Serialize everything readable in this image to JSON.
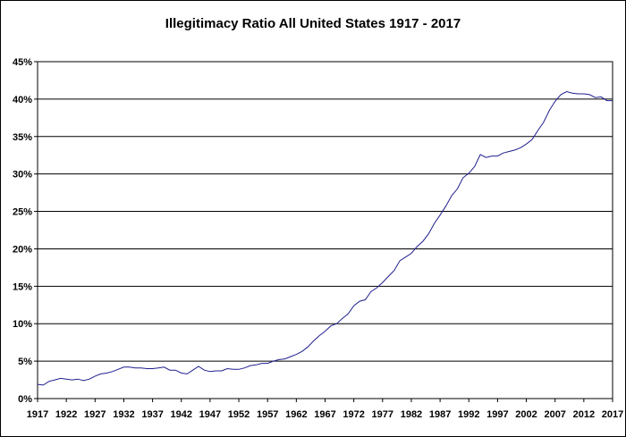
{
  "chart_data": {
    "type": "line",
    "title": "Illegitimacy Ratio All United States 1917 - 2017",
    "xlabel": "",
    "ylabel": "",
    "xlim": [
      1917,
      2017
    ],
    "ylim": [
      0,
      45
    ],
    "y_ticks": [
      "0%",
      "5%",
      "10%",
      "15%",
      "20%",
      "25%",
      "30%",
      "35%",
      "40%",
      "45%"
    ],
    "x_ticks": [
      "1917",
      "1922",
      "1927",
      "1932",
      "1937",
      "1942",
      "1947",
      "1952",
      "1957",
      "1962",
      "1967",
      "1972",
      "1977",
      "1982",
      "1987",
      "1992",
      "1997",
      "2002",
      "2007",
      "2012",
      "2017"
    ],
    "grid": "horizontal",
    "legend": "none",
    "series": [
      {
        "color": "#1f1f8f",
        "x": [
          1917,
          1918,
          1919,
          1920,
          1921,
          1922,
          1923,
          1924,
          1925,
          1926,
          1927,
          1928,
          1929,
          1930,
          1931,
          1932,
          1933,
          1934,
          1935,
          1936,
          1937,
          1938,
          1939,
          1940,
          1941,
          1942,
          1943,
          1944,
          1945,
          1946,
          1947,
          1948,
          1949,
          1950,
          1951,
          1952,
          1953,
          1954,
          1955,
          1956,
          1957,
          1958,
          1959,
          1960,
          1961,
          1962,
          1963,
          1964,
          1965,
          1966,
          1967,
          1968,
          1969,
          1970,
          1971,
          1972,
          1973,
          1974,
          1975,
          1976,
          1977,
          1978,
          1979,
          1980,
          1981,
          1982,
          1983,
          1984,
          1985,
          1986,
          1987,
          1988,
          1989,
          1990,
          1991,
          1992,
          1993,
          1994,
          1995,
          1996,
          1997,
          1998,
          1999,
          2000,
          2001,
          2002,
          2003,
          2004,
          2005,
          2006,
          2007,
          2008,
          2009,
          2010,
          2011,
          2012,
          2013,
          2014,
          2015,
          2016,
          2017
        ],
        "values": [
          1.9,
          1.8,
          2.3,
          2.5,
          2.7,
          2.6,
          2.5,
          2.6,
          2.4,
          2.6,
          3.0,
          3.3,
          3.4,
          3.6,
          3.9,
          4.2,
          4.2,
          4.1,
          4.1,
          4.0,
          4.0,
          4.1,
          4.2,
          3.8,
          3.8,
          3.4,
          3.3,
          3.8,
          4.3,
          3.8,
          3.6,
          3.7,
          3.7,
          4.0,
          3.9,
          3.9,
          4.1,
          4.4,
          4.5,
          4.7,
          4.7,
          5.0,
          5.2,
          5.3,
          5.6,
          5.9,
          6.3,
          6.9,
          7.7,
          8.4,
          9.0,
          9.7,
          10.0,
          10.7,
          11.3,
          12.4,
          13.0,
          13.2,
          14.3,
          14.8,
          15.5,
          16.3,
          17.1,
          18.4,
          18.9,
          19.4,
          20.3,
          21.0,
          22.0,
          23.4,
          24.5,
          25.7,
          27.1,
          28.0,
          29.5,
          30.1,
          31.0,
          32.6,
          32.2,
          32.4,
          32.4,
          32.8,
          33.0,
          33.2,
          33.5,
          34.0,
          34.6,
          35.8,
          36.9,
          38.5,
          39.7,
          40.6,
          41.0,
          40.8,
          40.7,
          40.7,
          40.6,
          40.2,
          40.3,
          39.8,
          39.8
        ]
      }
    ]
  }
}
